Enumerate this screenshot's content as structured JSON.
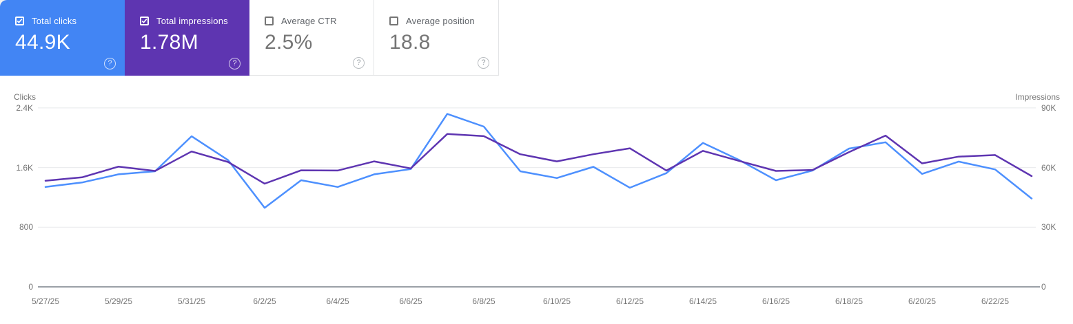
{
  "cards": [
    {
      "label": "Total clicks",
      "value": "44.9K",
      "checked": true,
      "color": "#4285f4"
    },
    {
      "label": "Total impressions",
      "value": "1.78M",
      "checked": true,
      "color": "#5e35b1"
    },
    {
      "label": "Average CTR",
      "value": "2.5%",
      "checked": false,
      "color": "#ffffff"
    },
    {
      "label": "Average position",
      "value": "18.8",
      "checked": false,
      "color": "#ffffff"
    }
  ],
  "help_icon_glyph": "?",
  "chart_data": {
    "type": "line",
    "x": [
      "5/27/25",
      "5/28/25",
      "5/29/25",
      "5/30/25",
      "5/31/25",
      "6/1/25",
      "6/2/25",
      "6/3/25",
      "6/4/25",
      "6/5/25",
      "6/6/25",
      "6/7/25",
      "6/8/25",
      "6/9/25",
      "6/10/25",
      "6/11/25",
      "6/12/25",
      "6/13/25",
      "6/14/25",
      "6/15/25",
      "6/16/25",
      "6/17/25",
      "6/18/25",
      "6/19/25",
      "6/20/25",
      "6/21/25",
      "6/22/25",
      "6/23/25"
    ],
    "x_tick_labels": [
      "5/27/25",
      "5/29/25",
      "5/31/25",
      "6/2/25",
      "6/4/25",
      "6/6/25",
      "6/8/25",
      "6/10/25",
      "6/12/25",
      "6/14/25",
      "6/16/25",
      "6/18/25",
      "6/20/25",
      "6/22/25"
    ],
    "left_axis": {
      "title": "Clicks",
      "ticks": [
        "2.4K",
        "1.6K",
        "800",
        "0"
      ],
      "tick_values": [
        2400,
        1600,
        800,
        0
      ],
      "max": 2400
    },
    "right_axis": {
      "title": "Impressions",
      "ticks": [
        "90K",
        "60K",
        "30K",
        "0"
      ],
      "tick_values": [
        90000,
        60000,
        30000,
        0
      ],
      "max": 90000
    },
    "series": [
      {
        "name": "Clicks",
        "axis": "left",
        "color": "#4d90fe",
        "values": [
          1340,
          1400,
          1510,
          1550,
          2020,
          1700,
          1060,
          1430,
          1340,
          1510,
          1580,
          2320,
          2150,
          1550,
          1460,
          1610,
          1330,
          1525,
          1930,
          1700,
          1430,
          1560,
          1855,
          1940,
          1515,
          1680,
          1575,
          1185
        ]
      },
      {
        "name": "Impressions",
        "axis": "right",
        "color": "#5e35b1",
        "values": [
          53400,
          55100,
          60500,
          58300,
          68100,
          62800,
          51900,
          58600,
          58500,
          63100,
          59600,
          76900,
          75800,
          66700,
          63100,
          66700,
          69700,
          58500,
          68400,
          63300,
          58300,
          58800,
          67800,
          76100,
          62100,
          65500,
          66300,
          55700
        ]
      }
    ],
    "grid": true,
    "legend_position": "none",
    "title": "",
    "xlabel": "",
    "ylabel_left": "Clicks",
    "ylabel_right": "Impressions"
  }
}
